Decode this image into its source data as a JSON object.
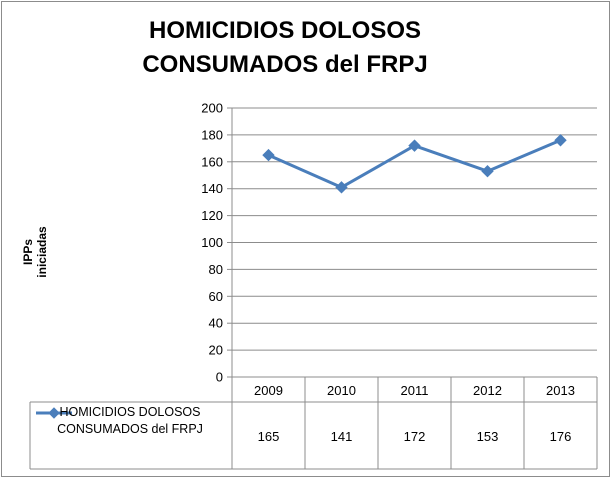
{
  "chart_data": {
    "type": "line",
    "title": "HOMICIDIOS DOLOSOS CONSUMADOS del FRPJ",
    "ylabel": "IPPs iniciadas",
    "xlabel": "",
    "categories": [
      "2009",
      "2010",
      "2011",
      "2012",
      "2013"
    ],
    "series": [
      {
        "name": "HOMICIDIOS DOLOSOS CONSUMADOS del FRPJ",
        "values": [
          165,
          141,
          172,
          153,
          176
        ]
      }
    ],
    "ylim": [
      0,
      200
    ],
    "yticks": [
      "0",
      "20",
      "40",
      "60",
      "80",
      "100",
      "120",
      "140",
      "160",
      "180",
      "200"
    ],
    "grid": true,
    "data_table": true,
    "series_color": "#4A7EBB"
  }
}
